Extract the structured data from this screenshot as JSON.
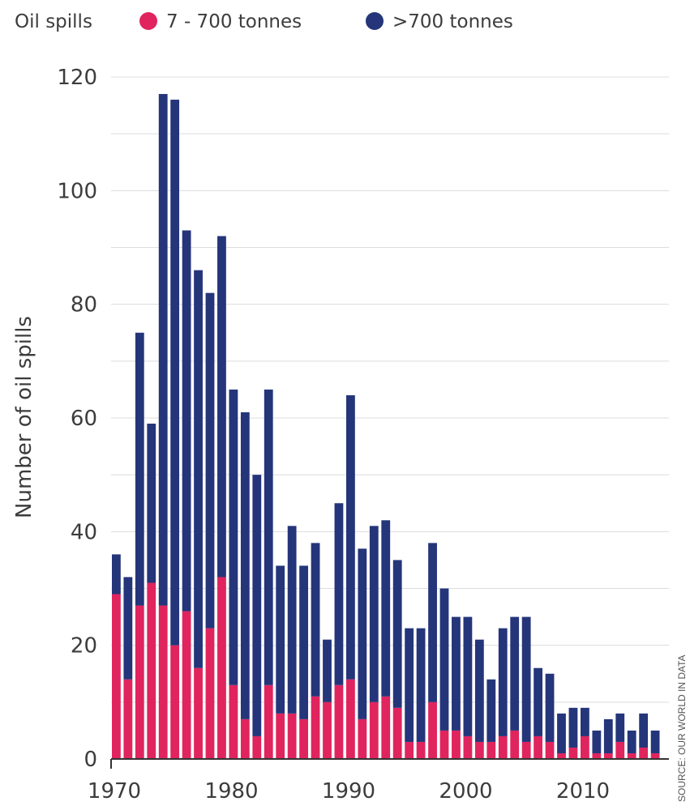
{
  "chart_data": {
    "type": "bar",
    "stacked": true,
    "legend": {
      "title": "Oil spills",
      "placement": "top-left"
    },
    "ylabel": "Number of oil spills",
    "source": "SOURCE: OUR WORLD IN DATA",
    "ylim": [
      0,
      120
    ],
    "yticks": [
      0,
      20,
      40,
      60,
      80,
      100,
      120
    ],
    "xticks": [
      1970,
      1980,
      1990,
      2000,
      2010
    ],
    "grid": true,
    "x": [
      1970,
      1971,
      1972,
      1973,
      1974,
      1975,
      1976,
      1977,
      1978,
      1979,
      1980,
      1981,
      1982,
      1983,
      1984,
      1985,
      1986,
      1987,
      1988,
      1989,
      1990,
      1991,
      1992,
      1993,
      1994,
      1995,
      1996,
      1997,
      1998,
      1999,
      2000,
      2001,
      2002,
      2003,
      2004,
      2005,
      2006,
      2007,
      2008,
      2009,
      2010,
      2011,
      2012,
      2013,
      2014,
      2015,
      2016
    ],
    "series": [
      {
        "name": "7 - 700 tonnes",
        "color": "#e0245e",
        "values": [
          29,
          14,
          27,
          31,
          27,
          20,
          26,
          16,
          23,
          32,
          13,
          7,
          4,
          13,
          8,
          8,
          7,
          11,
          10,
          13,
          14,
          7,
          10,
          11,
          9,
          3,
          3,
          10,
          5,
          5,
          4,
          3,
          3,
          4,
          5,
          3,
          4,
          3,
          1,
          2,
          4,
          1,
          1,
          3,
          1,
          2,
          1
        ]
      },
      {
        "name": ">700 tonnes",
        "color": "#24357a",
        "values": [
          7,
          18,
          48,
          28,
          90,
          96,
          67,
          70,
          59,
          60,
          52,
          54,
          46,
          52,
          26,
          33,
          27,
          27,
          11,
          32,
          50,
          30,
          31,
          31,
          26,
          20,
          20,
          28,
          25,
          20,
          21,
          18,
          11,
          19,
          20,
          22,
          12,
          12,
          7,
          7,
          5,
          4,
          6,
          5,
          4,
          6,
          4
        ]
      }
    ]
  }
}
